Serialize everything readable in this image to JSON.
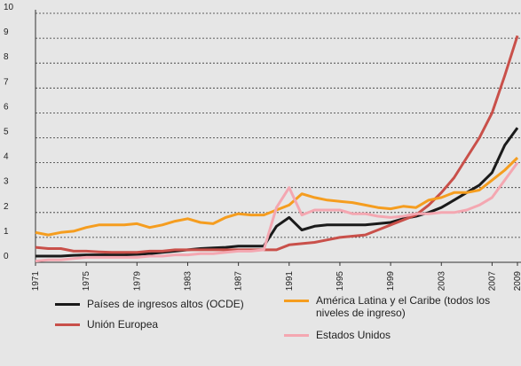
{
  "chart_data": {
    "type": "line",
    "x": [
      1971,
      1972,
      1973,
      1974,
      1975,
      1976,
      1977,
      1978,
      1979,
      1980,
      1981,
      1982,
      1983,
      1984,
      1985,
      1986,
      1987,
      1988,
      1989,
      1990,
      1991,
      1992,
      1993,
      1994,
      1995,
      1996,
      1997,
      1998,
      1999,
      2000,
      2001,
      2002,
      2003,
      2004,
      2005,
      2006,
      2007,
      2008,
      2009
    ],
    "xlim": [
      1971,
      2009
    ],
    "xticks": [
      1971,
      1975,
      1979,
      1983,
      1987,
      1991,
      1995,
      1999,
      2003,
      2007,
      2009
    ],
    "ylim": [
      0,
      10
    ],
    "yticks": [
      0,
      1,
      2,
      3,
      4,
      5,
      6,
      7,
      8,
      9,
      10
    ],
    "grid": true,
    "series": [
      {
        "name": "Países de ingresos altos (OCDE)",
        "color": "#1a1a1a",
        "values": [
          0.25,
          0.25,
          0.25,
          0.28,
          0.3,
          0.3,
          0.3,
          0.3,
          0.32,
          0.35,
          0.4,
          0.45,
          0.5,
          0.55,
          0.58,
          0.6,
          0.65,
          0.65,
          0.65,
          1.45,
          1.8,
          1.3,
          1.45,
          1.5,
          1.5,
          1.5,
          1.5,
          1.55,
          1.6,
          1.75,
          1.85,
          2.0,
          2.2,
          2.5,
          2.8,
          3.1,
          3.6,
          4.7,
          5.4
        ]
      },
      {
        "name": "Unión Europea",
        "color": "#c9504a",
        "values": [
          0.6,
          0.55,
          0.55,
          0.45,
          0.45,
          0.42,
          0.4,
          0.4,
          0.4,
          0.45,
          0.45,
          0.5,
          0.5,
          0.5,
          0.5,
          0.5,
          0.5,
          0.5,
          0.5,
          0.5,
          0.7,
          0.75,
          0.8,
          0.9,
          1.0,
          1.05,
          1.1,
          1.3,
          1.5,
          1.7,
          1.9,
          2.3,
          2.8,
          3.4,
          4.2,
          5.0,
          6.0,
          7.5,
          9.1
        ]
      },
      {
        "name": "América Latina y el Caribe (todos los niveles de ingreso)",
        "color": "#f59d1f",
        "values": [
          1.2,
          1.1,
          1.2,
          1.25,
          1.4,
          1.5,
          1.5,
          1.5,
          1.55,
          1.4,
          1.5,
          1.65,
          1.75,
          1.6,
          1.55,
          1.8,
          1.95,
          1.9,
          1.9,
          2.1,
          2.3,
          2.75,
          2.6,
          2.5,
          2.45,
          2.4,
          2.3,
          2.2,
          2.15,
          2.25,
          2.2,
          2.5,
          2.6,
          2.8,
          2.8,
          2.9,
          3.3,
          3.7,
          4.2
        ]
      },
      {
        "name": "Estados Unidos",
        "color": "#f4a7b1",
        "values": [
          0.05,
          0.1,
          0.1,
          0.15,
          0.2,
          0.2,
          0.2,
          0.2,
          0.2,
          0.25,
          0.25,
          0.3,
          0.3,
          0.35,
          0.35,
          0.4,
          0.45,
          0.45,
          0.5,
          2.2,
          3.0,
          1.9,
          2.1,
          2.1,
          2.1,
          1.95,
          1.95,
          1.85,
          1.8,
          1.85,
          1.95,
          1.95,
          2.0,
          2.0,
          2.1,
          2.3,
          2.6,
          3.3,
          4.0
        ]
      }
    ]
  }
}
